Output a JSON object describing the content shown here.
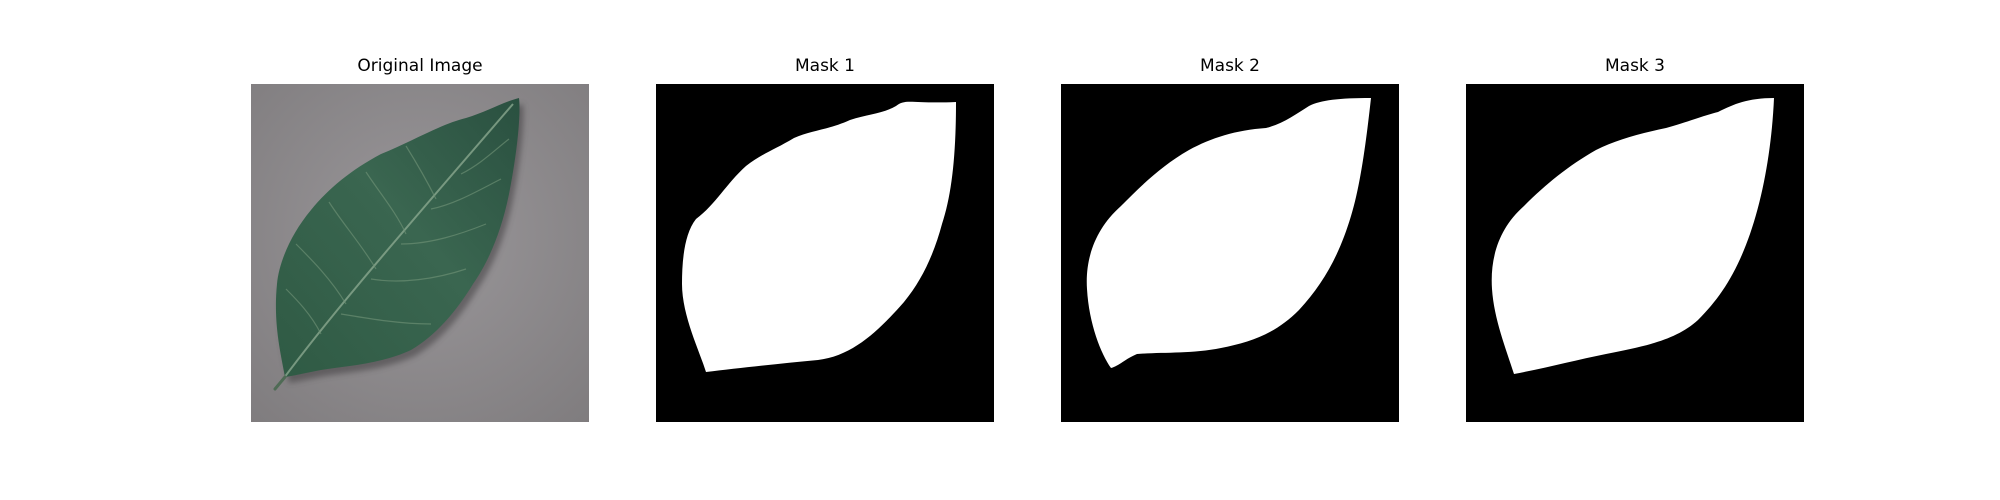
{
  "figure": {
    "panels": [
      {
        "title": "Original Image",
        "kind": "photo"
      },
      {
        "title": "Mask 1",
        "kind": "mask"
      },
      {
        "title": "Mask 2",
        "kind": "mask"
      },
      {
        "title": "Mask 3",
        "kind": "mask"
      }
    ]
  },
  "colors": {
    "page_background": "#ffffff",
    "photo_background": "#8f8c8e",
    "leaf_dark": "#2a4f3d",
    "leaf_mid": "#3c6a52",
    "leaf_vein": "#7c9c82",
    "mask_background": "#000000",
    "mask_foreground": "#ffffff"
  },
  "icons": {
    "original": "leaf-photo-icon",
    "mask": "binary-mask-icon"
  }
}
